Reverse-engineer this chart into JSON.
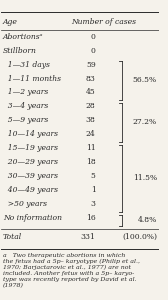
{
  "title_col1": "Age",
  "title_col2": "Number of cases",
  "rows": [
    {
      "age": "Abortionsᵃ",
      "n": "0",
      "bracket": null,
      "pct": null
    },
    {
      "age": "Stillborn",
      "n": "0",
      "bracket": null,
      "pct": null
    },
    {
      "age": "1—31 days",
      "n": "59",
      "bracket": "top",
      "pct": null
    },
    {
      "age": "1—11 months",
      "n": "83",
      "bracket": "mid",
      "pct": "56.5%"
    },
    {
      "age": "1—2 years",
      "n": "45",
      "bracket": "bot",
      "pct": null
    },
    {
      "age": "3—4 years",
      "n": "28",
      "bracket": "top",
      "pct": null
    },
    {
      "age": "5—9 years",
      "n": "38",
      "bracket": "mid",
      "pct": "27.2%"
    },
    {
      "age": "10—14 years",
      "n": "24",
      "bracket": "bot",
      "pct": null
    },
    {
      "age": "15—19 years",
      "n": "11",
      "bracket": "top",
      "pct": null
    },
    {
      "age": "20—29 years",
      "n": "18",
      "bracket": "mid",
      "pct": null
    },
    {
      "age": "30—39 years",
      "n": "5",
      "bracket": "mid",
      "pct": "11.5%"
    },
    {
      "age": "40—49 years",
      "n": "1",
      "bracket": "mid",
      "pct": null
    },
    {
      "age": ">50 years",
      "n": "3",
      "bracket": "bot",
      "pct": null
    },
    {
      "age": "No information",
      "n": "16",
      "bracket": null,
      "pct": "4.8%"
    }
  ],
  "total_age": "Total",
  "total_n": "331",
  "total_pct": "(100.0%)",
  "footnote": "a   Two therapeutic abortions in which\nthe fetus had a 5p– karyotype (Philip et al.,\n1970; Barjactarovic et al., 1977) are not\nincluded. Another fetus with a 5p– karyo-\ntype was recently reported by David et al.\n(1978)",
  "bg_color": "#f5f2eb",
  "text_color": "#2a2a2a",
  "font_size": 5.5,
  "footnote_size": 4.5
}
